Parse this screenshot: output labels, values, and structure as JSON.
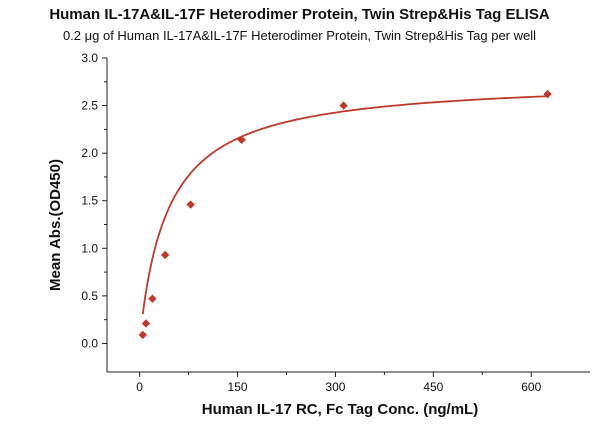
{
  "chart_data": {
    "type": "scatter",
    "title": "Human IL-17A&IL-17F Heterodimer Protein, Twin Strep&His Tag ELISA",
    "subtitle": "0.2 μg of Human IL-17A&IL-17F Heterodimer Protein, Twin Strep&His Tag per well",
    "xlabel": "Human IL-17 RC, Fc Tag Conc. (ng/mL)",
    "ylabel": "Mean Abs.(OD450)",
    "xlim": [
      -50,
      690
    ],
    "ylim": [
      -0.3,
      3.0
    ],
    "xticks": [
      0,
      150,
      300,
      450,
      600
    ],
    "yticks": [
      0.0,
      0.5,
      1.0,
      1.5,
      2.0,
      2.5,
      3.0
    ],
    "ytick_labels": [
      "0.0",
      "0.5",
      "1.0",
      "1.5",
      "2.0",
      "2.5",
      "3.0"
    ],
    "grid": false,
    "series": [
      {
        "x": [
          4.88,
          9.77,
          19.53,
          39.06,
          78.13,
          156.25,
          312.5,
          625
        ],
        "y": [
          0.09,
          0.21,
          0.47,
          0.93,
          1.46,
          2.14,
          2.5,
          2.62
        ],
        "marker": "diamond",
        "color": "#c0392b",
        "fit": "curve"
      }
    ]
  }
}
